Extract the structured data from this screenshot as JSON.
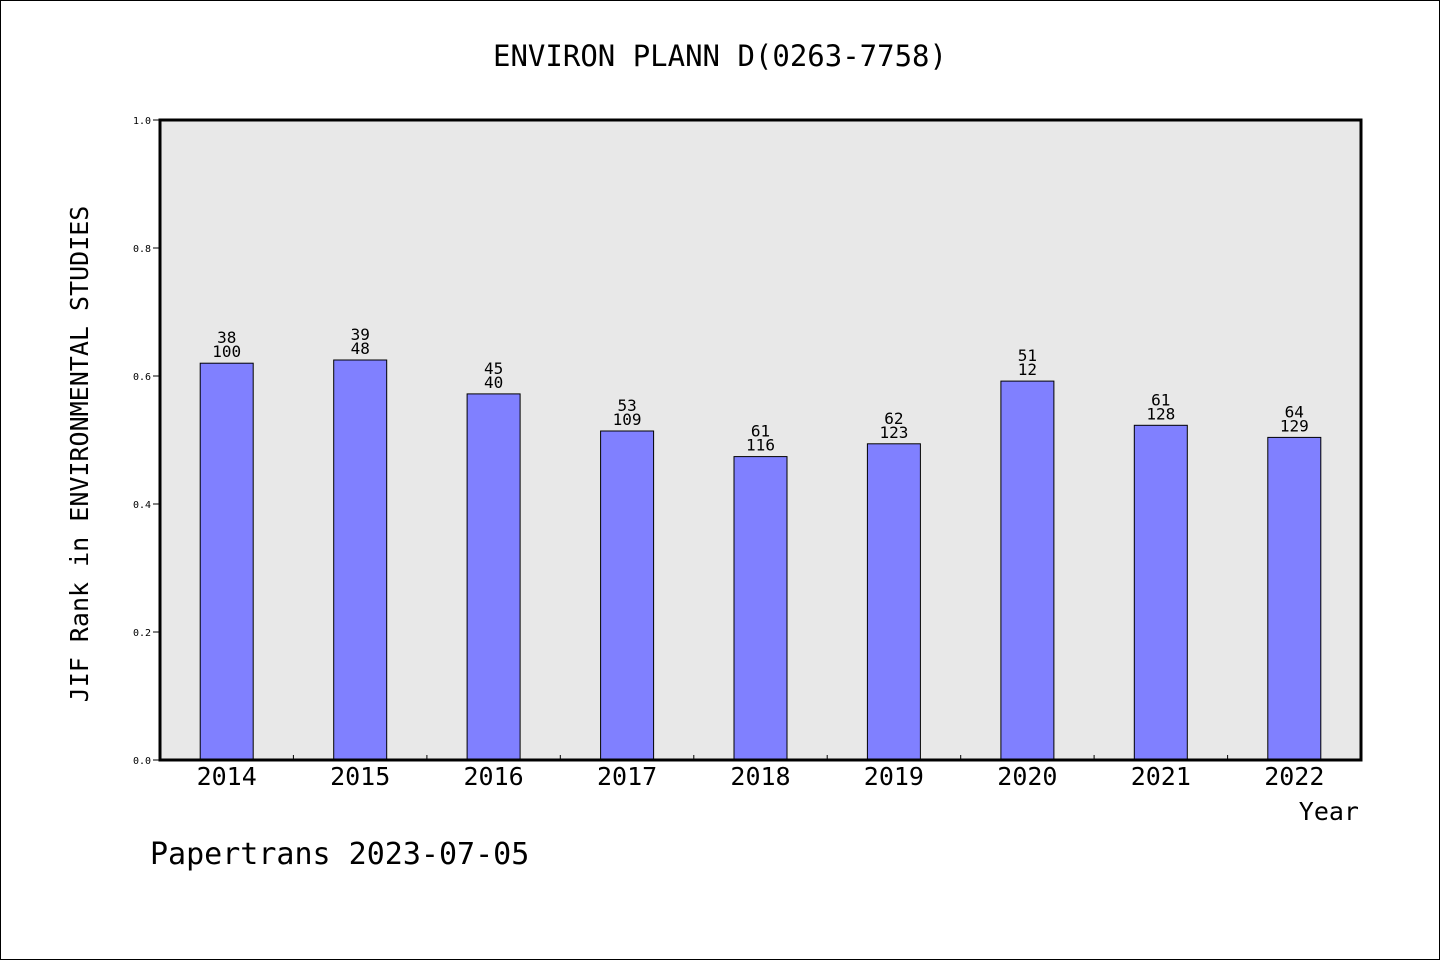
{
  "chart_data": {
    "type": "bar",
    "title": "ENVIRON PLANN D(0263-7758)",
    "xlabel": "Year",
    "ylabel": "JIF Rank in ENVIRONMENTAL STUDIES",
    "ylim": [
      0,
      1.0
    ],
    "yticks": [
      "0.0",
      "0.2",
      "0.4",
      "0.6",
      "0.8",
      "1.0"
    ],
    "categories": [
      "2014",
      "2015",
      "2016",
      "2017",
      "2018",
      "2019",
      "2020",
      "2021",
      "2022"
    ],
    "values": [
      0.62,
      0.625,
      0.572,
      0.514,
      0.474,
      0.494,
      0.592,
      0.523,
      0.504
    ],
    "labels_rank": [
      "38",
      "39",
      "45",
      "53",
      "61",
      "62",
      "51",
      "61",
      "64"
    ],
    "labels_total": [
      "100",
      "48",
      "40",
      "109",
      "116",
      "123",
      "12",
      "128",
      "129"
    ],
    "grid": false,
    "colors": {
      "bar": "#8080ff",
      "plot_bg": "#e8e8e8"
    }
  },
  "footer": {
    "text": "Papertrans 2023-07-05"
  }
}
